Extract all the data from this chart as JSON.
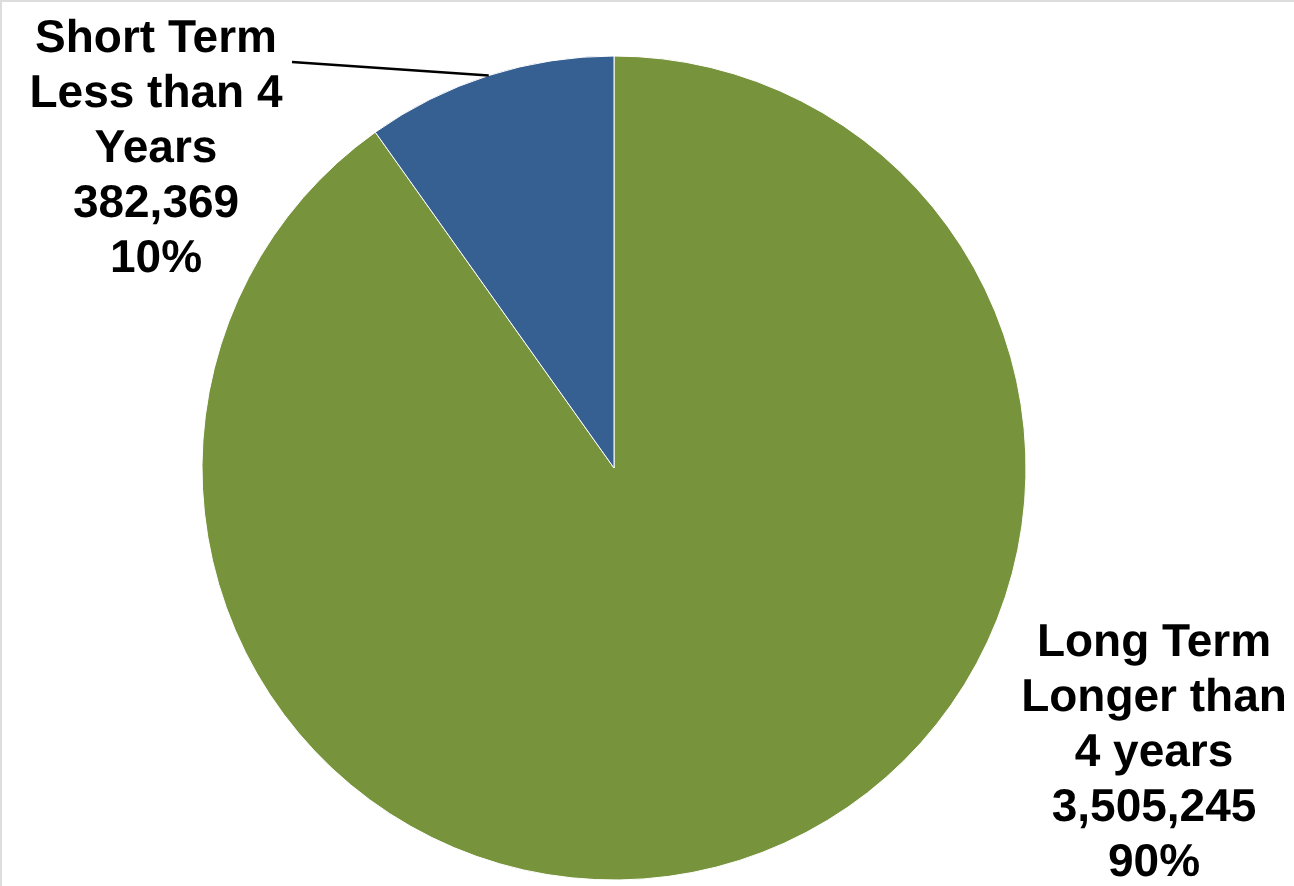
{
  "chart_data": {
    "type": "pie",
    "categories": [
      "Long Term Longer than 4 years",
      "Short Term Less than 4 Years"
    ],
    "values": [
      3505245,
      382369
    ],
    "colors": [
      "#77933c",
      "#376092"
    ],
    "value_labels": [
      "3,505,245\n90%",
      "382,369\n10%"
    ]
  }
}
